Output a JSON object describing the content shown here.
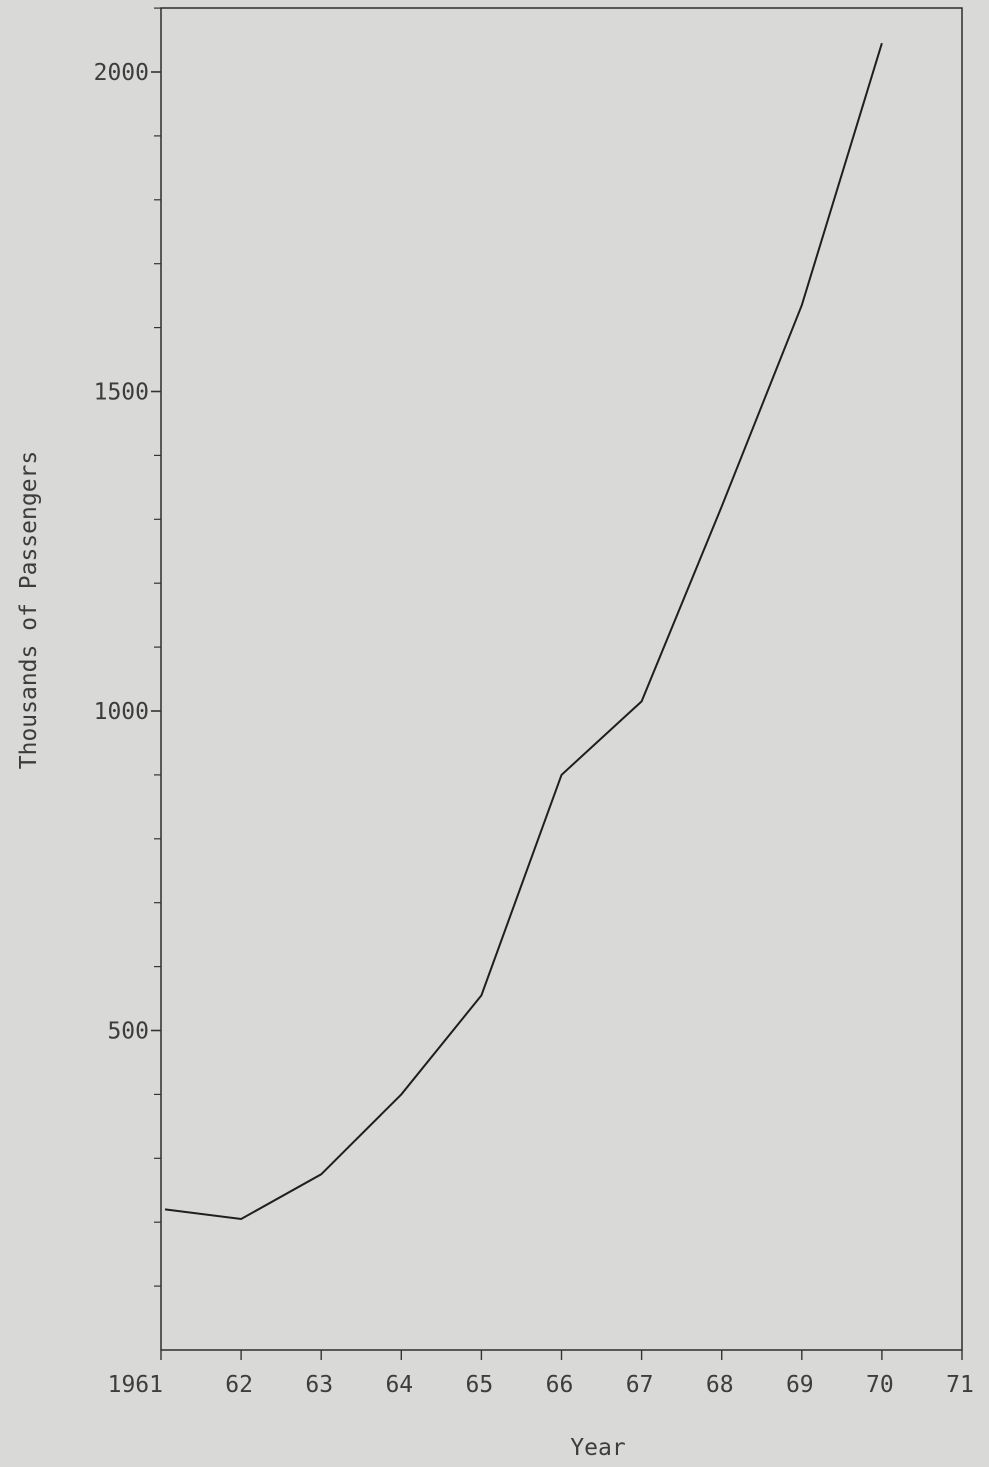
{
  "chart_data": {
    "type": "line",
    "title": "",
    "xlabel": "Year",
    "ylabel": "Thousands of Passengers",
    "x_tick_labels": [
      "1961",
      "62",
      "63",
      "64",
      "65",
      "66",
      "67",
      "68",
      "69",
      "70",
      "71"
    ],
    "x_ticks": [
      1961,
      1962,
      1963,
      1964,
      1965,
      1966,
      1967,
      1968,
      1969,
      1970,
      1971
    ],
    "xlim": [
      1961,
      1971
    ],
    "y_tick_labels": [
      "500",
      "1000",
      "1500",
      "2000"
    ],
    "y_ticks": [
      500,
      1000,
      1500,
      2000
    ],
    "y_minor_step": 100,
    "ylim": [
      0,
      2100
    ],
    "grid": false,
    "series": [
      {
        "x": [
          1961.05,
          1962,
          1963,
          1964,
          1965,
          1966,
          1967,
          1968,
          1969,
          1970
        ],
        "values": [
          220,
          205,
          275,
          400,
          555,
          900,
          1015,
          1320,
          1635,
          2045
        ]
      }
    ]
  }
}
